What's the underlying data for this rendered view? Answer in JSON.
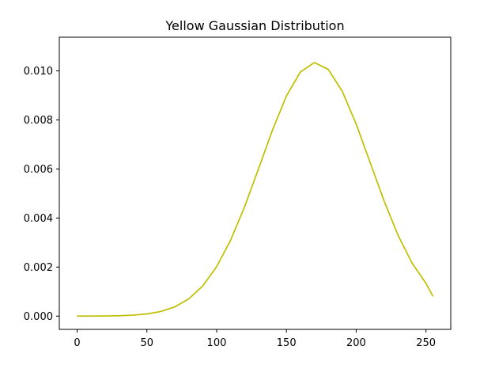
{
  "chart_data": {
    "type": "line",
    "title": "Yellow Gaussian Distribution",
    "xlabel": "",
    "ylabel": "",
    "xlim": [
      -12.75,
      267.75
    ],
    "ylim": [
      -0.00054,
      0.01137
    ],
    "x_ticks": [
      0,
      50,
      100,
      150,
      200,
      250
    ],
    "x_tick_labels": [
      "0",
      "50",
      "100",
      "150",
      "200",
      "250"
    ],
    "y_ticks": [
      0.0,
      0.002,
      0.004,
      0.006,
      0.008,
      0.01
    ],
    "y_tick_labels": [
      "0.000",
      "0.002",
      "0.004",
      "0.006",
      "0.008",
      "0.010"
    ],
    "grid": false,
    "legend": "none",
    "series": [
      {
        "color": "#bfbf00",
        "x": [
          0,
          10,
          20,
          30,
          40,
          50,
          60,
          70,
          80,
          90,
          100,
          110,
          120,
          130,
          140,
          150,
          160,
          170,
          180,
          190,
          200,
          210,
          220,
          230,
          240,
          250,
          255
        ],
        "y": [
          0.0,
          2e-06,
          6e-06,
          1.6e-05,
          3.9e-05,
          8.9e-05,
          0.000189,
          0.000376,
          0.000702,
          0.001228,
          0.002013,
          0.003093,
          0.004452,
          0.006004,
          0.007584,
          0.008975,
          0.009951,
          0.010336,
          0.010057,
          0.009167,
          0.007829,
          0.006263,
          0.004694,
          0.003296,
          0.002168,
          0.001336,
          0.000808
        ]
      }
    ]
  }
}
